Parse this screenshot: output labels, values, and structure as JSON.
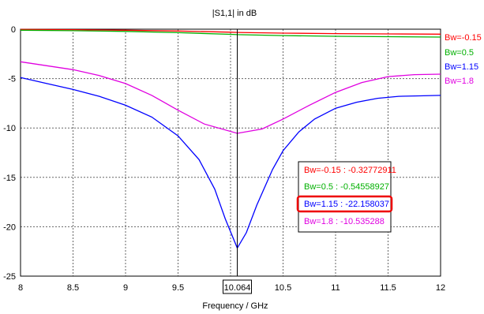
{
  "chart_data": {
    "type": "line",
    "title": "|S1,1| in dB",
    "xlabel": "Frequency / GHz",
    "ylabel": "",
    "xlim": [
      8,
      12
    ],
    "ylim": [
      -25,
      0
    ],
    "xticks": [
      8,
      8.5,
      9,
      9.5,
      10,
      10.5,
      11,
      11.5,
      12
    ],
    "xtick_labels": [
      "8",
      "8.5",
      "9",
      "9.5",
      "10",
      "10.5",
      "11",
      "11.5",
      "12"
    ],
    "yticks": [
      0,
      -5,
      -10,
      -15,
      -20,
      -25
    ],
    "ytick_labels": [
      "0",
      "-5",
      "-10",
      "-15",
      "-20",
      "-25"
    ],
    "grid": true,
    "legend_position": "right, outside plot",
    "marker": {
      "x": 10.064,
      "label": "10.064",
      "readouts": [
        {
          "text": "Bw=-0.15 : -0.32772911",
          "color": "#ff0000"
        },
        {
          "text": "Bw=0.5 : -0.54558927",
          "color": "#00b000"
        },
        {
          "text": "Bw=1.15 : -22.158037",
          "color": "#0000ff",
          "highlighted": true,
          "highlight_color": "#ee0000"
        },
        {
          "text": "Bw=1.8 : -10.535288",
          "color": "#e000e0"
        }
      ]
    },
    "series": [
      {
        "name": "Bw=-0.15",
        "color": "#ff0000",
        "x": [
          8,
          8.5,
          9,
          9.5,
          10,
          10.064,
          10.5,
          11,
          11.5,
          12
        ],
        "y": [
          -0.02,
          -0.05,
          -0.1,
          -0.18,
          -0.3,
          -0.33,
          -0.4,
          -0.45,
          -0.48,
          -0.5
        ]
      },
      {
        "name": "Bw=0.5",
        "color": "#00b000",
        "x": [
          8,
          8.5,
          9,
          9.5,
          10,
          10.064,
          10.5,
          11,
          11.5,
          12
        ],
        "y": [
          -0.1,
          -0.15,
          -0.22,
          -0.35,
          -0.52,
          -0.55,
          -0.65,
          -0.72,
          -0.76,
          -0.8
        ]
      },
      {
        "name": "Bw=1.15",
        "color": "#0000ff",
        "x": [
          8,
          8.25,
          8.5,
          8.75,
          9,
          9.25,
          9.5,
          9.7,
          9.85,
          9.95,
          10.064,
          10.15,
          10.25,
          10.4,
          10.5,
          10.65,
          10.8,
          11,
          11.2,
          11.4,
          11.6,
          11.8,
          12
        ],
        "y": [
          -4.9,
          -5.5,
          -6.1,
          -6.8,
          -7.7,
          -8.9,
          -10.8,
          -13.2,
          -16.2,
          -19.2,
          -22.16,
          -20.6,
          -17.8,
          -14.2,
          -12.3,
          -10.4,
          -9.1,
          -8.0,
          -7.4,
          -7.0,
          -6.8,
          -6.75,
          -6.7
        ]
      },
      {
        "name": "Bw=1.8",
        "color": "#e000e0",
        "x": [
          8,
          8.25,
          8.5,
          8.75,
          9,
          9.25,
          9.5,
          9.75,
          10.064,
          10.3,
          10.5,
          10.75,
          11,
          11.25,
          11.5,
          11.75,
          12
        ],
        "y": [
          -3.3,
          -3.7,
          -4.1,
          -4.7,
          -5.5,
          -6.7,
          -8.2,
          -9.6,
          -10.54,
          -10.1,
          -9.1,
          -7.7,
          -6.4,
          -5.4,
          -4.8,
          -4.6,
          -4.55
        ]
      }
    ]
  }
}
